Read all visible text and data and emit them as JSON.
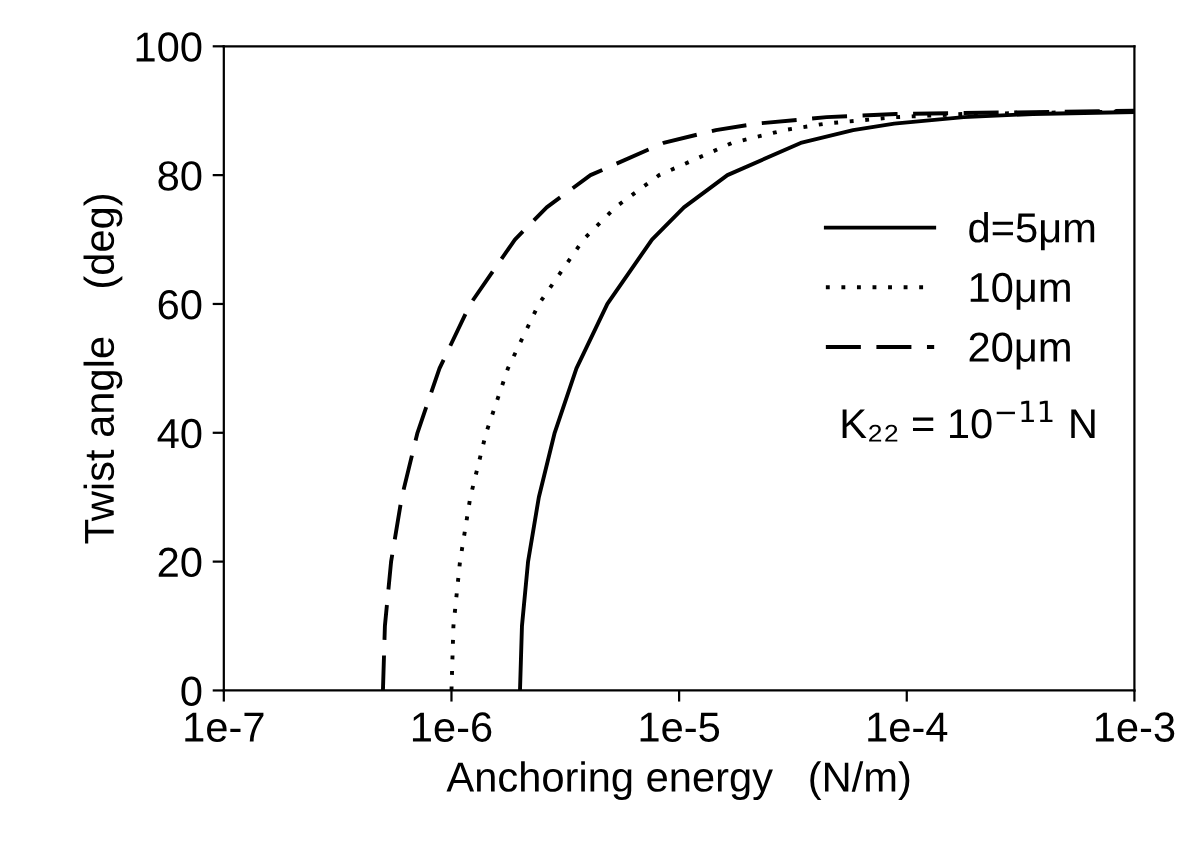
{
  "chart_data": {
    "type": "line",
    "xlabel": "Anchoring energy   (N/m)",
    "ylabel": "Twist angle    (deg)",
    "log": "x",
    "xlim": [
      1e-07,
      0.001
    ],
    "ylim": [
      0,
      100
    ],
    "xticks": [
      {
        "value": 1e-07,
        "label": "1e-7"
      },
      {
        "value": 1e-06,
        "label": "1e-6"
      },
      {
        "value": 1e-05,
        "label": "1e-5"
      },
      {
        "value": 0.0001,
        "label": "1e-4"
      },
      {
        "value": 0.001,
        "label": "1e-3"
      }
    ],
    "yticks": [
      0,
      20,
      40,
      60,
      80,
      100
    ],
    "grid": false,
    "legend": "right",
    "marker": "none",
    "annotations": [
      "K₂₂ = 10$^{−11}$ N"
    ],
    "series": [
      {
        "name": "d=5μm",
        "color": "#000000",
        "line_style": "solid",
        "x": [
          2e-06,
          2.04e-06,
          2.17e-06,
          2.42e-06,
          2.84e-06,
          3.54e-06,
          4.84e-06,
          7.6e-06,
          1.05e-05,
          1.63e-05,
          3.42e-05,
          5.81e-05,
          8.81e-05,
          0.000178,
          0.000358,
          0.001
        ],
        "values": [
          0,
          10,
          20,
          30,
          40,
          50,
          60,
          70,
          75,
          80,
          85,
          87,
          88,
          89,
          89.5,
          89.8
        ]
      },
      {
        "name": "10μm",
        "color": "#000000",
        "line_style": "dotted",
        "x": [
          1e-06,
          1.02e-06,
          1.09e-06,
          1.21e-06,
          1.42e-06,
          1.77e-06,
          2.42e-06,
          3.8e-06,
          5.24e-06,
          8.17e-06,
          1.71e-05,
          2.91e-05,
          4.4e-05,
          8.9e-05,
          0.000179,
          0.001
        ],
        "values": [
          0,
          10,
          20,
          30,
          40,
          50,
          60,
          70,
          75,
          80,
          85,
          87,
          88,
          89,
          89.5,
          89.9
        ]
      },
      {
        "name": "20μm",
        "color": "#000000",
        "line_style": "dashed",
        "x": [
          5e-07,
          5.1e-07,
          5.43e-07,
          6.05e-07,
          7.09e-07,
          8.86e-07,
          1.21e-06,
          1.9e-06,
          2.62e-06,
          4.08e-06,
          8.54e-06,
          1.45e-05,
          2.2e-05,
          4.45e-05,
          8.95e-05,
          0.001
        ],
        "values": [
          0,
          10,
          20,
          30,
          40,
          50,
          60,
          70,
          75,
          80,
          85,
          87,
          88,
          89,
          89.5,
          90
        ]
      }
    ]
  }
}
